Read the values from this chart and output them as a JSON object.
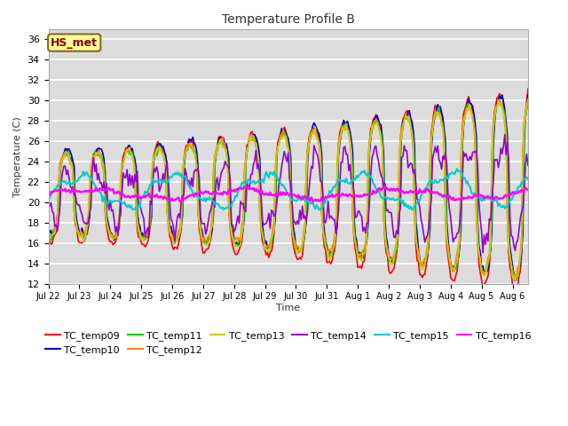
{
  "title": "Temperature Profile B",
  "xlabel": "Time",
  "ylabel": "Temperature (C)",
  "ylim": [
    12,
    37
  ],
  "yticks": [
    12,
    14,
    16,
    18,
    20,
    22,
    24,
    26,
    28,
    30,
    32,
    34,
    36
  ],
  "bg_color": "#dcdcdc",
  "grid_color": "#ffffff",
  "annotation_text": "HS_met",
  "annotation_bg": "#ffff99",
  "annotation_border": "#8B6914",
  "annotation_text_color": "#8B0000",
  "series": [
    {
      "name": "TC_temp09",
      "color": "#ff0000",
      "lw": 1.2
    },
    {
      "name": "TC_temp10",
      "color": "#0000cc",
      "lw": 1.2
    },
    {
      "name": "TC_temp11",
      "color": "#00cc00",
      "lw": 1.2
    },
    {
      "name": "TC_temp12",
      "color": "#ff8800",
      "lw": 1.2
    },
    {
      "name": "TC_temp13",
      "color": "#cccc00",
      "lw": 1.2
    },
    {
      "name": "TC_temp14",
      "color": "#9900cc",
      "lw": 1.2
    },
    {
      "name": "TC_temp15",
      "color": "#00cccc",
      "lw": 1.5
    },
    {
      "name": "TC_temp16",
      "color": "#ff00ff",
      "lw": 1.8
    }
  ],
  "xtick_labels": [
    "Jul 22",
    "Jul 23",
    "Jul 24",
    "Jul 25",
    "Jul 26",
    "Jul 27",
    "Jul 28",
    "Jul 29",
    "Jul 30",
    "Jul 31",
    "Aug 1",
    "Aug 2",
    "Aug 3",
    "Aug 4",
    "Aug 5",
    "Aug 6"
  ]
}
